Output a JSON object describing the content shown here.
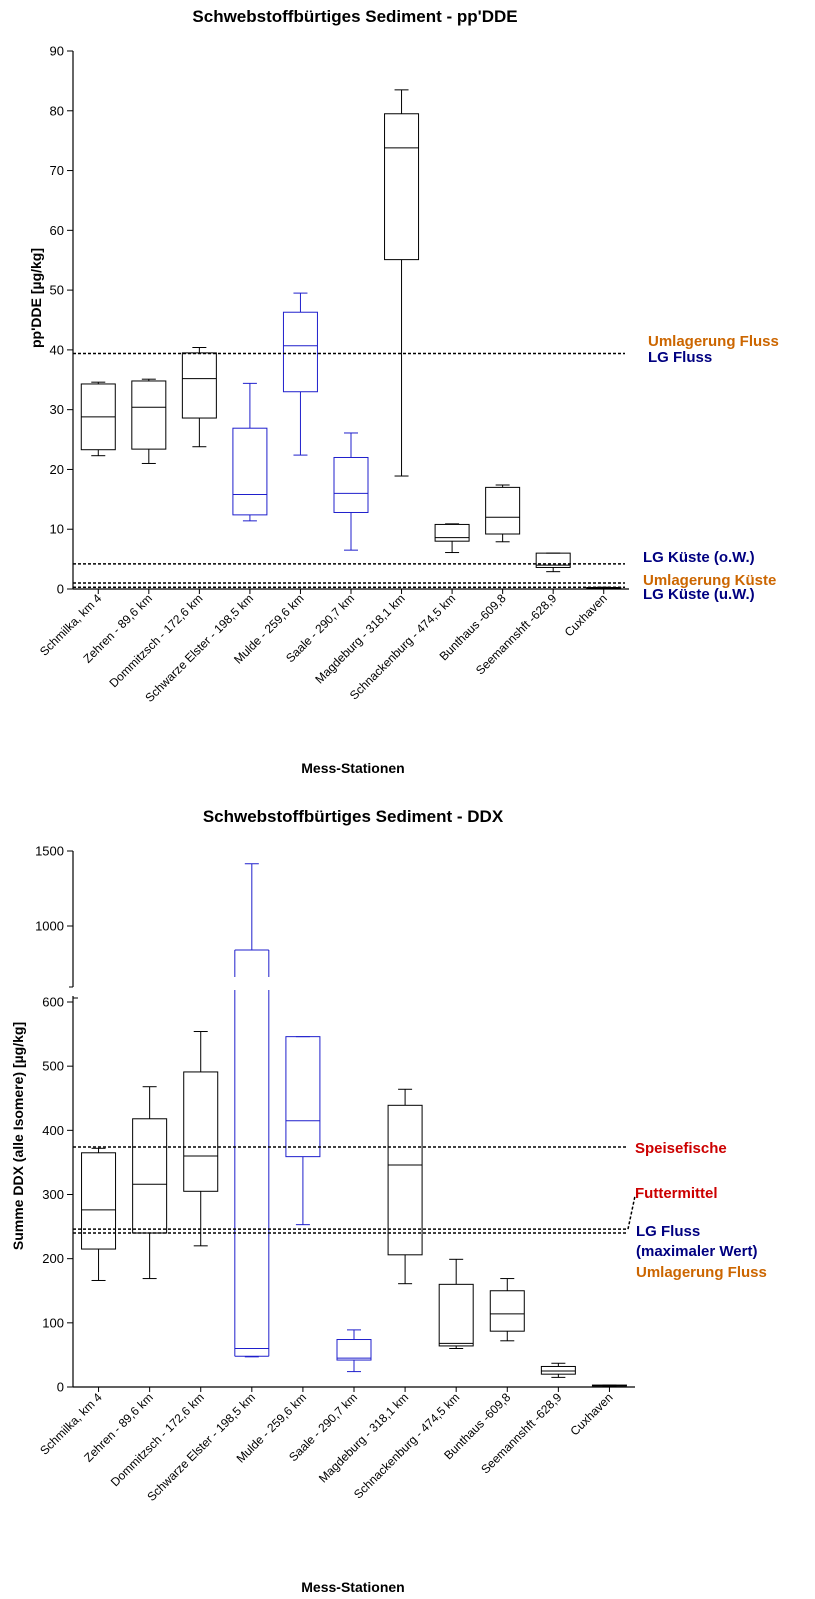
{
  "chart_data": [
    {
      "type": "boxplot",
      "title": "Schwebstoffbürtiges Sediment - pp'DDE",
      "xlabel": "Mess-Stationen",
      "ylabel": "pp'DDE [µg/kg]",
      "ylim": [
        0,
        90
      ],
      "yticks": [
        0,
        10,
        20,
        30,
        40,
        50,
        60,
        70,
        80,
        90
      ],
      "categories": [
        "Schmilka, km 4",
        "Zehren - 89,6 km",
        "Dommitzsch - 172,6 km",
        "Schwarze Elster - 198,5 km",
        "Mulde - 259,6 km",
        "Saale - 290,7 km",
        "Magdeburg - 318,1 km",
        "Schnackenburg - 474,5 km",
        "Bunthaus -609,8",
        "Seemannshft -628,9",
        "Cuxhaven"
      ],
      "boxes": [
        {
          "min": 22.3,
          "q1": 23.3,
          "median": 28.8,
          "q3": 34.3,
          "max": 34.6,
          "color": "#000000"
        },
        {
          "min": 21.0,
          "q1": 23.4,
          "median": 30.4,
          "q3": 34.8,
          "max": 35.1,
          "color": "#000000"
        },
        {
          "min": 23.8,
          "q1": 28.6,
          "median": 35.2,
          "q3": 39.5,
          "max": 40.4,
          "color": "#000000"
        },
        {
          "min": 11.4,
          "q1": 12.4,
          "median": 15.8,
          "q3": 26.9,
          "max": 34.4,
          "color": "#1f1fcc"
        },
        {
          "min": 22.4,
          "q1": 33.0,
          "median": 40.7,
          "q3": 46.3,
          "max": 49.5,
          "color": "#1f1fcc"
        },
        {
          "min": 6.5,
          "q1": 12.8,
          "median": 16.0,
          "q3": 22.0,
          "max": 26.1,
          "color": "#1f1fcc"
        },
        {
          "min": 18.9,
          "q1": 55.1,
          "median": 73.8,
          "q3": 79.5,
          "max": 83.5,
          "color": "#000000"
        },
        {
          "min": 6.1,
          "q1": 8.0,
          "median": 8.6,
          "q3": 10.8,
          "max": 10.9,
          "color": "#000000"
        },
        {
          "min": 7.9,
          "q1": 9.2,
          "median": 12.0,
          "q3": 17.0,
          "max": 17.4,
          "color": "#000000"
        },
        {
          "min": 2.9,
          "q1": 3.6,
          "median": 4.0,
          "q3": 6.0,
          "max": 6.0,
          "color": "#000000"
        },
        {
          "min": 0.1,
          "q1": 0.15,
          "median": 0.2,
          "q3": 0.25,
          "max": 0.3,
          "color": "#000000"
        }
      ],
      "reference_lines": [
        {
          "value": 39.4,
          "labels": [
            {
              "text": "Umlagerung Fluss",
              "color": "#cc6600"
            },
            {
              "text": "LG Fluss",
              "color": "#000080"
            }
          ]
        },
        {
          "value": 4.2,
          "labels": [
            {
              "text": "LG Küste (o.W.)",
              "color": "#000080"
            }
          ]
        },
        {
          "value": 1.0,
          "labels": [
            {
              "text": "Umlagerung Küste",
              "color": "#cc6600"
            }
          ]
        },
        {
          "value": 0.3,
          "labels": [
            {
              "text": "LG Küste (u.W.)",
              "color": "#000080"
            }
          ]
        }
      ]
    },
    {
      "type": "boxplot",
      "title": "Schwebstoffbürtiges Sediment - DDX",
      "xlabel": "Mess-Stationen",
      "ylabel": "Summe DDX (alle Isomere) [µg/kg]",
      "ylim": [
        0,
        1500
      ],
      "axis_break": [
        600,
        620
      ],
      "yticks_lower": [
        0,
        100,
        200,
        300,
        400,
        500,
        600
      ],
      "yticks_upper": [
        1000,
        1500
      ],
      "categories": [
        "Schmilka, km 4",
        "Zehren - 89,6 km",
        "Dommitzsch - 172,6 km",
        "Schwarze Elster - 198,5 km",
        "Mulde - 259,6 km",
        "Saale - 290,7 km",
        "Magdeburg - 318,1 km",
        "Schnackenburg - 474,5 km",
        "Bunthaus -609,8",
        "Seemannshft -628,9",
        "Cuxhaven"
      ],
      "boxes": [
        {
          "min": 166,
          "q1": 215,
          "median": 276,
          "q3": 365,
          "max": 372,
          "color": "#000000"
        },
        {
          "min": 169,
          "q1": 240,
          "median": 316,
          "q3": 418,
          "max": 468,
          "color": "#000000"
        },
        {
          "min": 220,
          "q1": 305,
          "median": 360,
          "q3": 491,
          "max": 554,
          "color": "#000000"
        },
        {
          "min": 47,
          "q1": 48,
          "median": 60,
          "q3": 840,
          "max": 1415,
          "color": "#1f1fcc"
        },
        {
          "min": 253,
          "q1": 359,
          "median": 415,
          "q3": 546,
          "max": 546,
          "color": "#1f1fcc"
        },
        {
          "min": 24,
          "q1": 42,
          "median": 45,
          "q3": 74,
          "max": 89,
          "color": "#1f1fcc"
        },
        {
          "min": 161,
          "q1": 206,
          "median": 346,
          "q3": 439,
          "max": 464,
          "color": "#000000"
        },
        {
          "min": 60,
          "q1": 64,
          "median": 68,
          "q3": 160,
          "max": 199,
          "color": "#000000"
        },
        {
          "min": 72,
          "q1": 87,
          "median": 114,
          "q3": 150,
          "max": 169,
          "color": "#000000"
        },
        {
          "min": 15,
          "q1": 20,
          "median": 25,
          "q3": 32,
          "max": 37,
          "color": "#000000"
        },
        {
          "min": 1,
          "q1": 2,
          "median": 2,
          "q3": 3,
          "max": 3,
          "color": "#000000"
        }
      ],
      "reference_lines": [
        {
          "value": 374,
          "labels": [
            {
              "text": "Speisefische",
              "color": "#cc0000"
            }
          ]
        },
        {
          "value": 246,
          "labels": [
            {
              "text": "Futtermittel",
              "color": "#cc0000"
            }
          ]
        },
        {
          "value": 240,
          "labels": [
            {
              "text": "LG Fluss",
              "color": "#000080"
            },
            {
              "text": "(maximaler Wert)",
              "color": "#000080"
            },
            {
              "text": "Umlagerung Fluss",
              "color": "#cc6600"
            }
          ]
        }
      ]
    }
  ]
}
